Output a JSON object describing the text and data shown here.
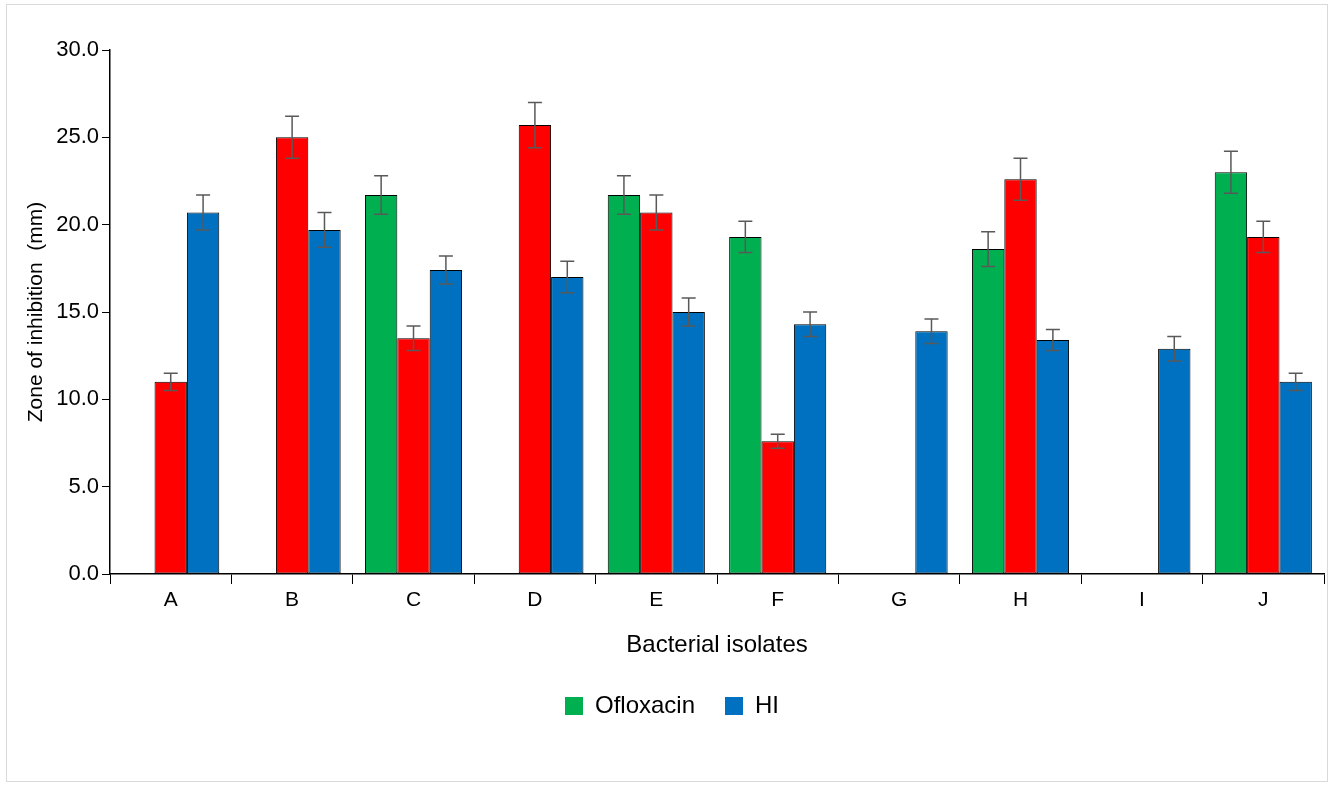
{
  "chart_data": {
    "type": "bar",
    "xlabel": "Bacterial isolates",
    "ylabel": "Zone of inhibition  (mm)",
    "categories": [
      "A",
      "B",
      "C",
      "D",
      "E",
      "F",
      "G",
      "H",
      "I",
      "J"
    ],
    "series": [
      {
        "name": "Ofloxacin",
        "color": "#00b050",
        "values": [
          null,
          null,
          21.7,
          null,
          21.7,
          19.3,
          null,
          18.6,
          null,
          23.0
        ],
        "errors": [
          null,
          null,
          1.1,
          null,
          1.1,
          0.9,
          null,
          1.0,
          null,
          1.2
        ]
      },
      {
        "color": "#ff0000",
        "values": [
          11.0,
          25.0,
          13.5,
          25.7,
          20.7,
          7.6,
          null,
          22.6,
          null,
          19.3
        ],
        "errors": [
          0.5,
          1.2,
          0.7,
          1.3,
          1.0,
          0.4,
          null,
          1.2,
          null,
          0.9
        ]
      },
      {
        "name": "HI",
        "color": "#0070c0",
        "values": [
          20.7,
          19.7,
          17.4,
          17.0,
          15.0,
          14.3,
          13.9,
          13.4,
          12.9,
          11.0
        ],
        "errors": [
          1.0,
          1.0,
          0.8,
          0.9,
          0.8,
          0.7,
          0.7,
          0.6,
          0.7,
          0.5
        ]
      }
    ],
    "ylim": [
      0,
      30
    ],
    "yticks": [
      {
        "value": 0,
        "label": "0.0"
      },
      {
        "value": 5,
        "label": "5.0"
      },
      {
        "value": 10,
        "label": "10.0"
      },
      {
        "value": 15,
        "label": "15.0"
      },
      {
        "value": 20,
        "label": "20.0"
      },
      {
        "value": 25,
        "label": "25.0"
      },
      {
        "value": 30,
        "label": "30.0"
      }
    ],
    "grid": false,
    "legend": "bottom"
  }
}
